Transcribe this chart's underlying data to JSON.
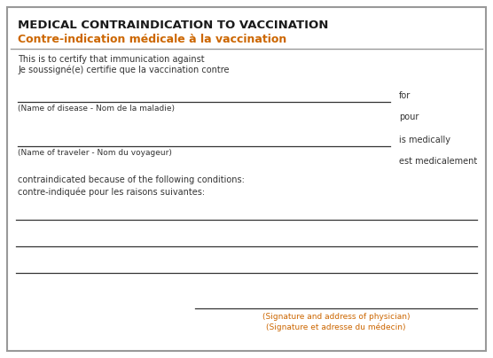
{
  "title_line1": "MEDICAL CONTRAINDICATION TO VACCINATION",
  "title_line2": "Contre-indication médicale à la vaccination",
  "title_color": "#1a1a1a",
  "subtitle_color": "#cc6600",
  "certify_line1": "This is to certify that immunication against",
  "certify_line2": "Je soussigné(e) certifie que la vaccination contre",
  "disease_label": "(Name of disease - Nom de la maladie)",
  "for_text": "for",
  "pour_text": "pour",
  "traveler_label": "(Name of traveler - Nom du voyageur)",
  "medically_text": "is medically",
  "medicalement_text": "est medicalement",
  "contraindicated_line1": "contraindicated because of the following conditions:",
  "contraindicated_line2": "contre-indiquée pour les raisons suivantes:",
  "sig_line1": "(Signature and address of physician)",
  "sig_line2": "(Signature et adresse du médecin)",
  "border_color": "#999999",
  "line_color": "#333333",
  "text_color": "#333333",
  "orange_color": "#cc6600",
  "bg_color": "#ffffff"
}
